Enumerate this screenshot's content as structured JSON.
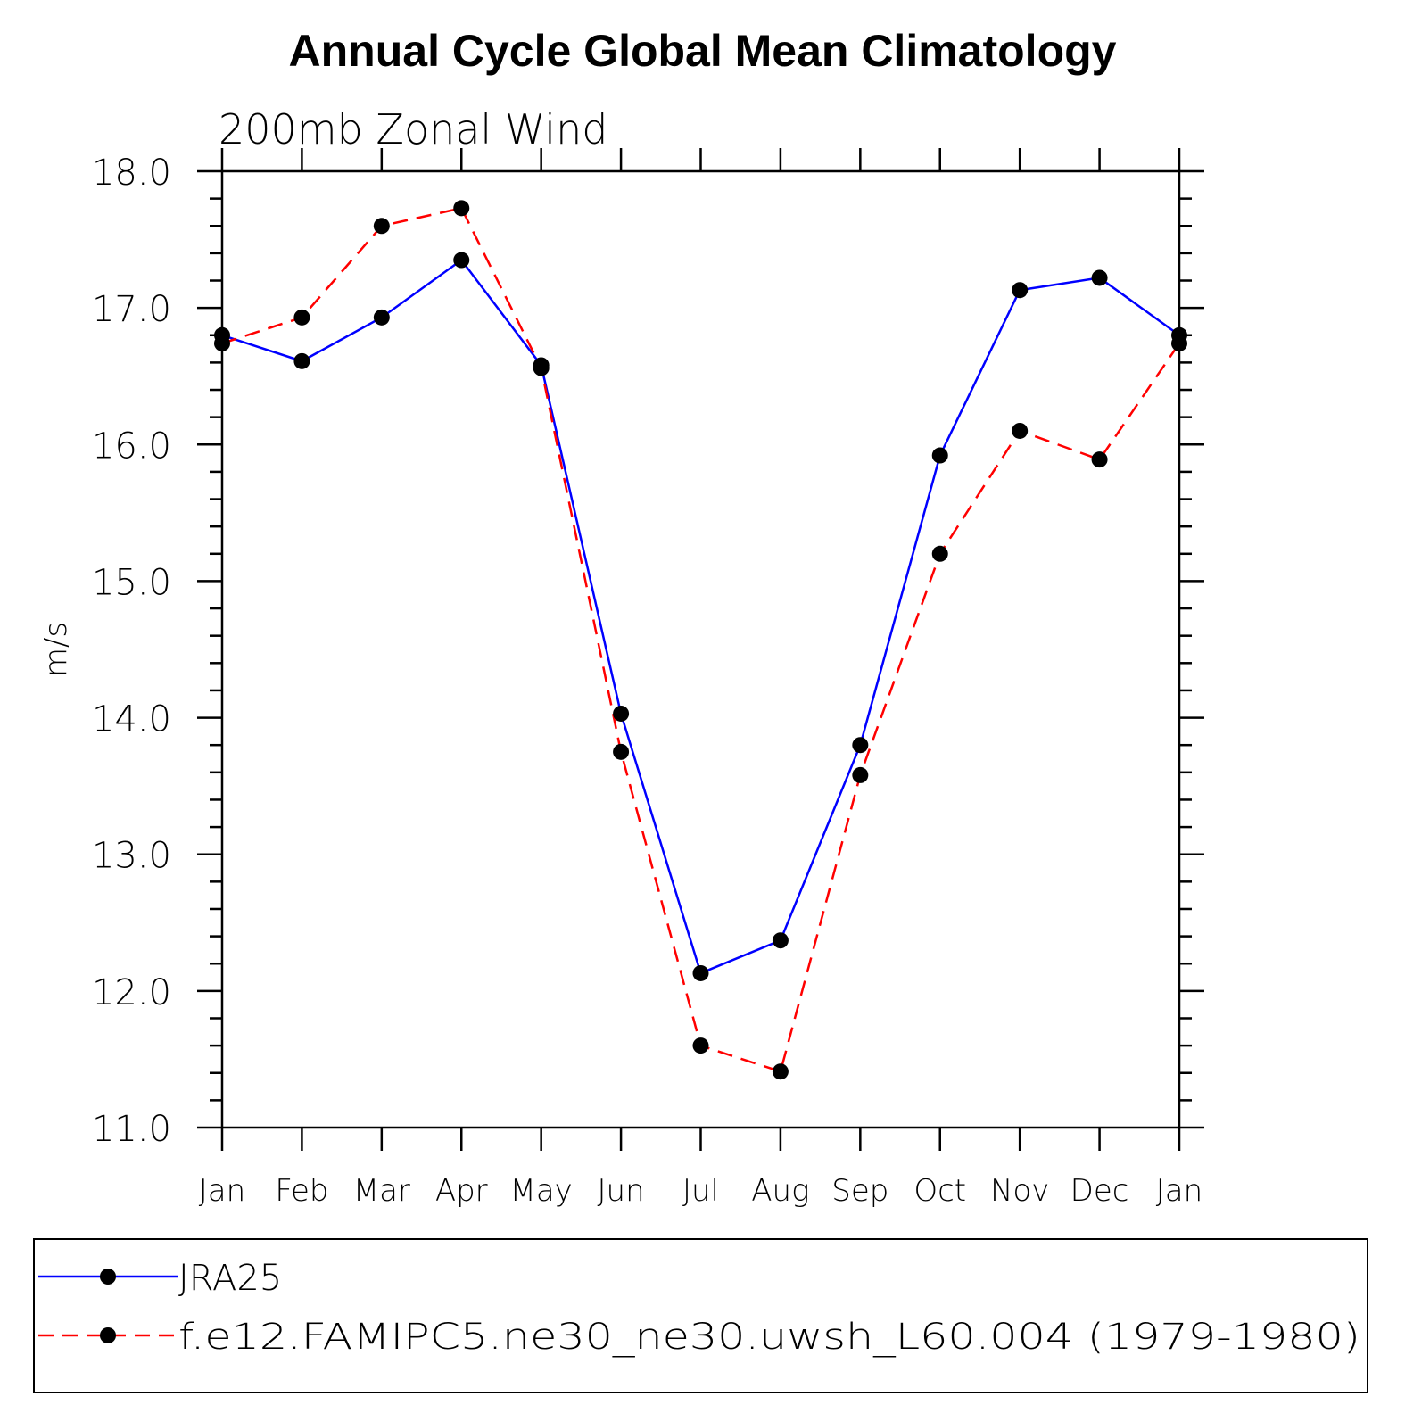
{
  "chart_data": {
    "type": "line",
    "title": "Annual Cycle Global Mean Climatology",
    "subtitle": "200mb Zonal Wind",
    "xlabel": "",
    "ylabel": "m/s",
    "categories": [
      "Jan",
      "Feb",
      "Mar",
      "Apr",
      "May",
      "Jun",
      "Jul",
      "Aug",
      "Sep",
      "Oct",
      "Nov",
      "Dec",
      "Jan"
    ],
    "ylim": [
      11.0,
      18.0
    ],
    "yticks": [
      "11.0",
      "12.0",
      "13.0",
      "14.0",
      "15.0",
      "16.0",
      "17.0",
      "18.0"
    ],
    "grid": false,
    "legend_position": "bottom",
    "series": [
      {
        "name": "JRA25",
        "color": "#0000ff",
        "dash": "solid",
        "values": [
          16.8,
          16.61,
          16.93,
          17.35,
          16.58,
          14.03,
          12.13,
          12.37,
          13.8,
          15.92,
          17.13,
          17.22,
          16.8
        ]
      },
      {
        "name": "f.e12.FAMIPC5.ne30_ne30.uwsh_L60.004 (1979-1980)",
        "color": "#ff0000",
        "dash": "dashed",
        "values": [
          16.74,
          16.93,
          17.6,
          17.73,
          16.56,
          13.75,
          11.6,
          11.41,
          13.58,
          15.2,
          16.1,
          15.89,
          16.74
        ]
      }
    ]
  }
}
